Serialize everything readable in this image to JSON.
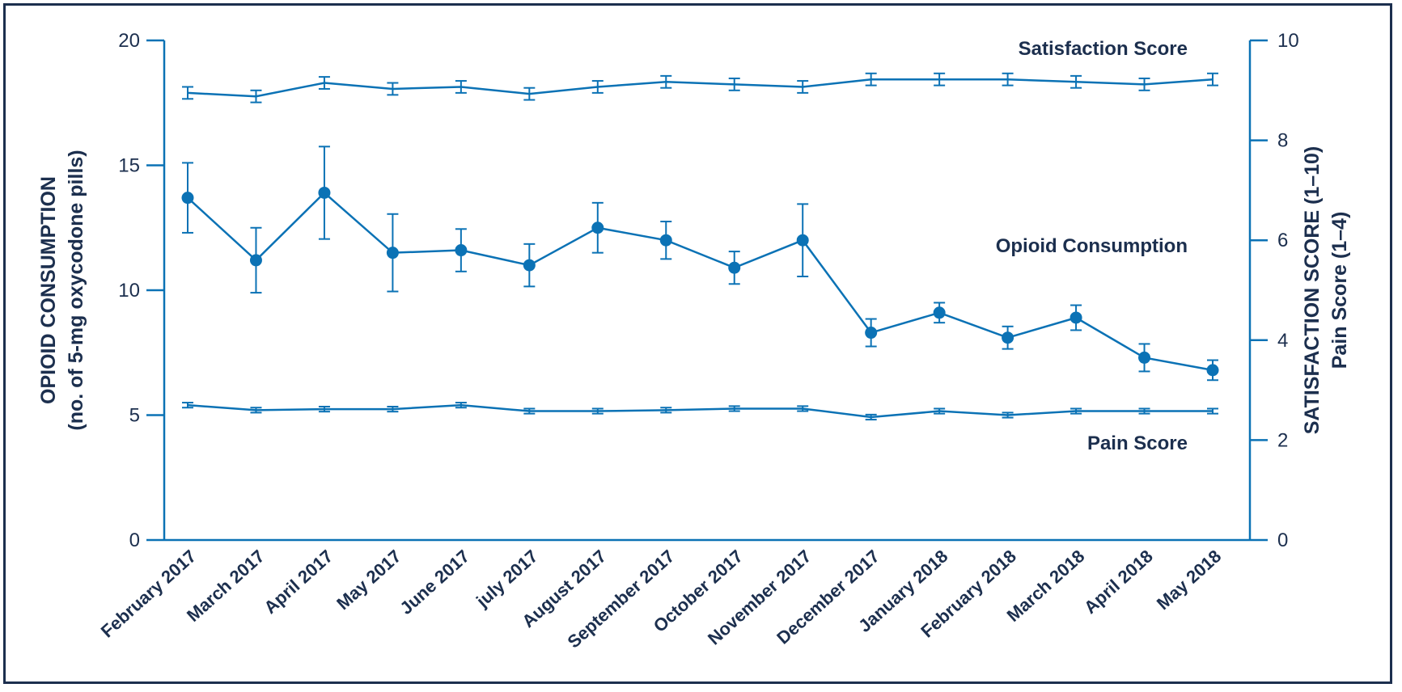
{
  "chart_data": {
    "type": "line",
    "categories": [
      "February 2017",
      "March 2017",
      "April 2017",
      "May 2017",
      "June 2017",
      "July 2017",
      "August 2017",
      "September 2017",
      "October 2017",
      "November 2017",
      "December 2017",
      "January 2018",
      "February 2018",
      "March 2018",
      "April 2018",
      "May 2018"
    ],
    "category_display": [
      "February 2017",
      "March 2017",
      "April 2017",
      "May 2017",
      "June 2017",
      "july 2017",
      "August 2017",
      "September 2017",
      "October 2017",
      "November 2017",
      "December 2017",
      "January 2018",
      "February 2018",
      "March 2018",
      "April 2018",
      "May 2018"
    ],
    "y_left": {
      "label_line1": "OPIOID CONSUMPTION",
      "label_line2": "(no. of 5-mg oxycodone pills)",
      "ylim": [
        0,
        20
      ],
      "ticks": [
        0,
        5,
        10,
        15,
        20
      ]
    },
    "y_right": {
      "label_line1": "SATISFACTION SCORE (1–10)",
      "label_line2": "Pain Score (1–4)",
      "ylim": [
        0,
        10
      ],
      "ticks": [
        0,
        2,
        4,
        6,
        8,
        10
      ]
    },
    "series": [
      {
        "name": "Satisfaction Score",
        "axis": "right",
        "markers": false,
        "values": [
          8.95,
          8.88,
          9.15,
          9.03,
          9.07,
          8.93,
          9.07,
          9.17,
          9.12,
          9.07,
          9.22,
          9.22,
          9.22,
          9.17,
          9.12,
          9.22
        ],
        "err": [
          0.12,
          0.12,
          0.12,
          0.12,
          0.12,
          0.12,
          0.12,
          0.12,
          0.12,
          0.12,
          0.12,
          0.12,
          0.12,
          0.12,
          0.12,
          0.12
        ]
      },
      {
        "name": "Opioid Consumption",
        "axis": "left",
        "markers": true,
        "values": [
          13.7,
          11.2,
          13.9,
          11.5,
          11.6,
          11.0,
          12.5,
          12.0,
          10.9,
          12.0,
          8.3,
          9.1,
          8.1,
          8.9,
          7.3,
          6.8
        ],
        "err": [
          1.4,
          1.3,
          1.85,
          1.55,
          0.85,
          0.85,
          1.0,
          0.75,
          0.65,
          1.45,
          0.55,
          0.4,
          0.45,
          0.5,
          0.55,
          0.4
        ]
      },
      {
        "name": "Pain Score",
        "axis": "right",
        "markers": false,
        "values": [
          2.7,
          2.6,
          2.62,
          2.62,
          2.7,
          2.58,
          2.58,
          2.6,
          2.63,
          2.63,
          2.46,
          2.58,
          2.5,
          2.58,
          2.58,
          2.58
        ],
        "err": [
          0.05,
          0.05,
          0.05,
          0.05,
          0.05,
          0.05,
          0.05,
          0.05,
          0.05,
          0.05,
          0.05,
          0.05,
          0.05,
          0.05,
          0.05,
          0.05
        ]
      }
    ],
    "line_color": "#0b72b5",
    "axis_color": "#0b72b5",
    "text_color": "#1c2f4e",
    "grid": false,
    "legend": "inline labels"
  }
}
